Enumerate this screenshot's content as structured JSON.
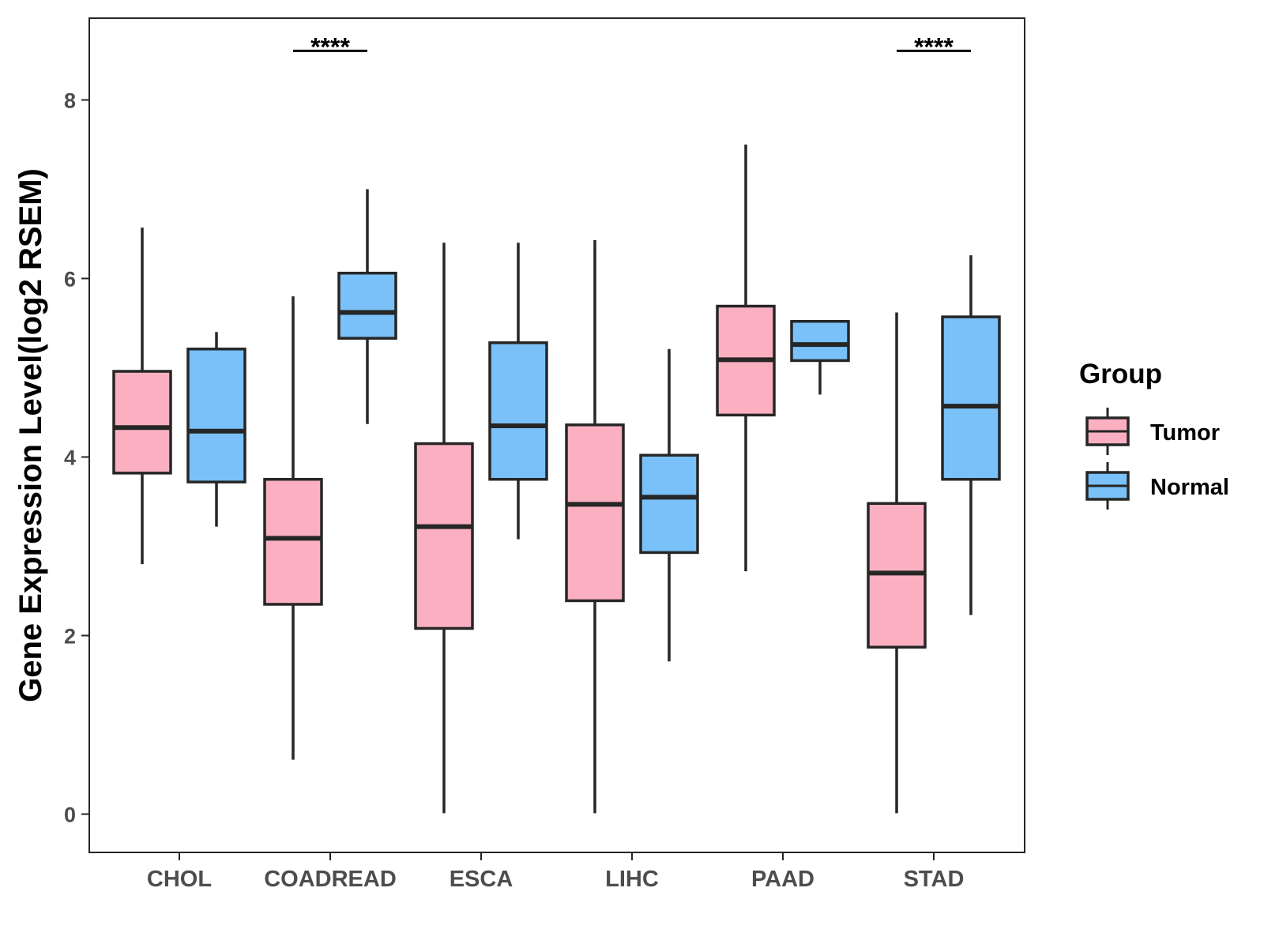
{
  "chart_data": {
    "type": "boxplot",
    "ylabel": "Gene Expression Level(log2 RSEM)",
    "xlabel": "",
    "ylim": [
      -0.8,
      8.9
    ],
    "yticks": [
      0,
      2,
      4,
      6,
      8
    ],
    "categories": [
      "CHOL",
      "COADREAD",
      "ESCA",
      "LIHC",
      "PAAD",
      "STAD"
    ],
    "legend": {
      "title": "Group",
      "position": "right",
      "entries": [
        "Tumor",
        "Normal"
      ]
    },
    "colors": {
      "Tumor": "#fbb0c1",
      "Normal": "#79c1f8",
      "outline": "#262626"
    },
    "series": [
      {
        "name": "Tumor",
        "boxes": [
          {
            "category": "CHOL",
            "min": 2.8,
            "q1": 3.82,
            "median": 4.33,
            "q3": 4.96,
            "max": 6.57
          },
          {
            "category": "COADREAD",
            "min": 0.61,
            "q1": 2.35,
            "median": 3.09,
            "q3": 3.75,
            "max": 5.8
          },
          {
            "category": "ESCA",
            "min": 0.01,
            "q1": 2.08,
            "median": 3.22,
            "q3": 4.15,
            "max": 6.4
          },
          {
            "category": "LIHC",
            "min": 0.01,
            "q1": 2.39,
            "median": 3.47,
            "q3": 4.36,
            "max": 6.43
          },
          {
            "category": "PAAD",
            "min": 2.72,
            "q1": 4.47,
            "median": 5.09,
            "q3": 5.69,
            "max": 7.5
          },
          {
            "category": "STAD",
            "min": 0.01,
            "q1": 1.87,
            "median": 2.7,
            "q3": 3.48,
            "max": 5.62
          }
        ]
      },
      {
        "name": "Normal",
        "boxes": [
          {
            "category": "CHOL",
            "min": 3.22,
            "q1": 3.72,
            "median": 4.29,
            "q3": 5.21,
            "max": 5.4
          },
          {
            "category": "COADREAD",
            "min": 4.37,
            "q1": 5.33,
            "median": 5.62,
            "q3": 6.06,
            "max": 7.0
          },
          {
            "category": "ESCA",
            "min": 3.08,
            "q1": 3.75,
            "median": 4.35,
            "q3": 5.28,
            "max": 6.4
          },
          {
            "category": "LIHC",
            "min": 1.71,
            "q1": 2.93,
            "median": 3.55,
            "q3": 4.02,
            "max": 5.21
          },
          {
            "category": "PAAD",
            "min": 4.7,
            "q1": 5.08,
            "median": 5.26,
            "q3": 5.52,
            "max": 5.52
          },
          {
            "category": "STAD",
            "min": 2.23,
            "q1": 3.75,
            "median": 4.57,
            "q3": 5.57,
            "max": 6.26
          }
        ]
      }
    ],
    "annotations": [
      {
        "category": "COADREAD",
        "text": "****",
        "y": 8.55
      },
      {
        "category": "STAD",
        "text": "****",
        "y": 8.55
      }
    ]
  }
}
